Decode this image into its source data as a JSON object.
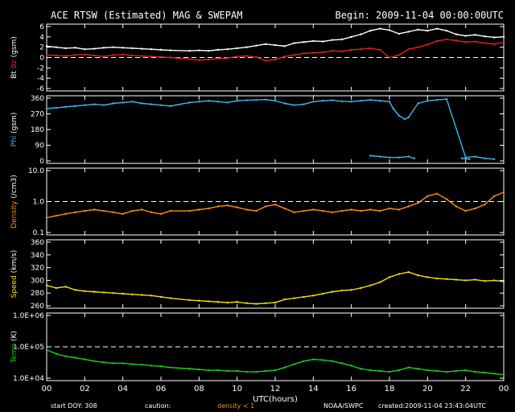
{
  "header": {
    "title": "ACE RTSW (Estimated) MAG & SWEPAM",
    "begin": "Begin: 2009-11-04 00:00:00UTC"
  },
  "footer": {
    "start_doy": "start DOY: 308",
    "caution": "caution:",
    "density_note": "density < 1",
    "credit": "NOAA/SWPC",
    "created": "created:2009-11-04 23:43:04UTC"
  },
  "colors": {
    "bt": "#ffffff",
    "bz": "#e02020",
    "phi": "#3fb8e8",
    "density": "#ff8c1a",
    "speed": "#f0e020",
    "temp": "#20d020",
    "caution": "#ff8c1a"
  },
  "chart_data": [
    {
      "type": "scatter",
      "id": "mag",
      "ylabel_parts": [
        {
          "text": "Bt",
          "color": "#ffffff"
        },
        {
          "text": "Bz",
          "color": "#e02020"
        },
        {
          "text": "(gsm)",
          "color": "#ffffff"
        }
      ],
      "ylim": [
        -6,
        6
      ],
      "yticks": [
        "-6",
        "-4",
        "-2",
        "0",
        "2",
        "4",
        "6"
      ],
      "reference_line": 0,
      "series": [
        {
          "name": "Bt",
          "color": "#ffffff",
          "x": [
            0,
            0.5,
            1,
            1.5,
            2,
            2.5,
            3,
            3.5,
            4,
            4.5,
            5,
            5.5,
            6,
            6.5,
            7.5,
            8,
            8.5,
            9,
            9.5,
            10,
            10.5,
            11,
            11.5,
            12,
            12.5,
            13,
            13.5,
            14,
            14.5,
            15,
            15.5,
            16,
            16.5,
            17,
            17.5,
            18,
            18.5,
            19,
            19.5,
            20,
            20.5,
            21,
            21.5,
            22,
            22.5,
            23,
            23.5,
            24
          ],
          "y": [
            2.2,
            2.0,
            1.8,
            1.9,
            1.6,
            1.7,
            1.9,
            2.0,
            1.9,
            1.8,
            1.7,
            1.6,
            1.5,
            1.4,
            1.3,
            1.4,
            1.3,
            1.5,
            1.6,
            1.8,
            2.0,
            2.3,
            2.6,
            2.4,
            2.2,
            2.8,
            3.0,
            3.2,
            3.1,
            3.4,
            3.5,
            4.0,
            4.5,
            5.2,
            5.6,
            5.3,
            4.6,
            5.0,
            5.4,
            5.2,
            5.6,
            5.2,
            4.5,
            4.2,
            4.4,
            4.1,
            3.9,
            4.0
          ]
        },
        {
          "name": "Bz",
          "color": "#e02020",
          "x": [
            0,
            0.5,
            1,
            1.5,
            2,
            2.5,
            3,
            3.5,
            4,
            4.5,
            5,
            5.5,
            6,
            6.5,
            7.5,
            8,
            8.5,
            9,
            9.5,
            10,
            10.5,
            11,
            11.5,
            12,
            12.5,
            13,
            13.5,
            14,
            14.5,
            15,
            15.5,
            16,
            16.5,
            17,
            17.5,
            18,
            18.5,
            19,
            19.5,
            20,
            20.5,
            21,
            21.5,
            22,
            22.5,
            23,
            23.5,
            24
          ],
          "y": [
            0.5,
            0.4,
            0.3,
            0.5,
            0.6,
            0.4,
            0.2,
            0.5,
            0.6,
            0.4,
            0.3,
            0.2,
            0.1,
            0.0,
            -0.3,
            -0.5,
            -0.4,
            -0.2,
            -0.1,
            0.2,
            0.3,
            0.1,
            -0.6,
            -0.4,
            0.2,
            0.5,
            0.8,
            0.9,
            1.0,
            1.3,
            1.2,
            1.5,
            1.6,
            1.8,
            1.5,
            0.0,
            0.5,
            1.6,
            2.0,
            2.5,
            3.2,
            3.5,
            3.3,
            3.0,
            3.1,
            2.8,
            2.6,
            3.0
          ]
        }
      ]
    },
    {
      "type": "scatter",
      "id": "phi",
      "ylabel_parts": [
        {
          "text": "Phi",
          "color": "#3fb8e8"
        },
        {
          "text": "(gsm)",
          "color": "#ffffff"
        }
      ],
      "ylim": [
        0,
        360
      ],
      "yticks": [
        "0",
        "90",
        "180",
        "270",
        "360"
      ],
      "series": [
        {
          "name": "Phi",
          "color": "#3fb8e8",
          "x": [
            0,
            0.5,
            1,
            1.5,
            2,
            2.5,
            3,
            3.5,
            4,
            4.5,
            5,
            5.5,
            6,
            6.5,
            7.5,
            8,
            8.5,
            9,
            9.5,
            10,
            10.5,
            11,
            11.5,
            12,
            12.5,
            13,
            13.5,
            14,
            14.5,
            15,
            15.5,
            16,
            16.5,
            17,
            17.5,
            18,
            18.2,
            18.5,
            18.8,
            19,
            19.5,
            20,
            20.5,
            21,
            22,
            22.5,
            23,
            23.5
          ],
          "y": [
            300,
            305,
            310,
            315,
            320,
            325,
            320,
            330,
            335,
            340,
            330,
            325,
            320,
            315,
            335,
            340,
            345,
            340,
            335,
            345,
            348,
            350,
            352,
            345,
            330,
            320,
            325,
            340,
            345,
            348,
            342,
            340,
            345,
            350,
            345,
            340,
            300,
            260,
            240,
            250,
            330,
            345,
            350,
            355,
            20,
            25,
            15,
            10
          ]
        },
        {
          "name": "Phi-low",
          "color": "#3fb8e8",
          "x": [
            17,
            17.5,
            18,
            18.5,
            19,
            19.3,
            21.8,
            22.2
          ],
          "y": [
            30,
            25,
            20,
            20,
            25,
            15,
            15,
            10
          ]
        }
      ]
    },
    {
      "type": "scatter",
      "id": "density",
      "ylabel_parts": [
        {
          "text": "Density",
          "color": "#ff8c1a"
        },
        {
          "text": "(/cm3)",
          "color": "#ffffff"
        }
      ],
      "ylim": [
        0.1,
        10.0
      ],
      "log_scale": true,
      "yticks": [
        "0.1",
        "1.0",
        "10.0"
      ],
      "reference_line": 1.0,
      "series": [
        {
          "name": "Density",
          "color": "#ff8c1a",
          "x": [
            0,
            0.5,
            1,
            1.5,
            2,
            2.5,
            3,
            3.5,
            4,
            4.5,
            5,
            5.5,
            6,
            6.5,
            7.5,
            8,
            8.5,
            9,
            9.5,
            10,
            10.5,
            11,
            11.5,
            12,
            12.5,
            13,
            13.5,
            14,
            14.5,
            15,
            15.5,
            16,
            16.5,
            17,
            17.5,
            18,
            18.5,
            19,
            19.5,
            20,
            20.5,
            21,
            21.5,
            22,
            22.5,
            23,
            23.5,
            24
          ],
          "y": [
            0.3,
            0.35,
            0.4,
            0.45,
            0.5,
            0.55,
            0.5,
            0.45,
            0.4,
            0.5,
            0.55,
            0.45,
            0.4,
            0.5,
            0.5,
            0.55,
            0.6,
            0.7,
            0.75,
            0.65,
            0.55,
            0.5,
            0.7,
            0.8,
            0.6,
            0.45,
            0.5,
            0.55,
            0.5,
            0.45,
            0.5,
            0.55,
            0.5,
            0.55,
            0.5,
            0.6,
            0.55,
            0.7,
            0.9,
            1.5,
            1.8,
            1.2,
            0.7,
            0.5,
            0.6,
            0.8,
            1.5,
            2.0
          ]
        }
      ]
    },
    {
      "type": "scatter",
      "id": "speed",
      "ylabel_parts": [
        {
          "text": "Speed",
          "color": "#f0e020"
        },
        {
          "text": "(km/s)",
          "color": "#ffffff"
        }
      ],
      "ylim": [
        260,
        360
      ],
      "yticks": [
        "260",
        "280",
        "300",
        "320",
        "340",
        "360"
      ],
      "series": [
        {
          "name": "Speed",
          "color": "#f0e020",
          "x": [
            0,
            0.5,
            1,
            1.5,
            2,
            2.5,
            3,
            3.5,
            4,
            4.5,
            5,
            5.5,
            6,
            6.5,
            7.5,
            8,
            8.5,
            9,
            9.5,
            10,
            10.5,
            11,
            11.5,
            12,
            12.5,
            13,
            13.5,
            14,
            14.5,
            15,
            15.5,
            16,
            16.5,
            17,
            17.5,
            18,
            18.5,
            19,
            19.5,
            20,
            20.5,
            21,
            21.5,
            22,
            22.5,
            23,
            23.5,
            24
          ],
          "y": [
            292,
            288,
            290,
            285,
            283,
            282,
            281,
            280,
            279,
            278,
            277,
            276,
            274,
            272,
            269,
            268,
            267,
            266,
            265,
            266,
            264,
            263,
            264,
            265,
            270,
            272,
            274,
            276,
            279,
            282,
            284,
            285,
            288,
            292,
            297,
            305,
            310,
            313,
            308,
            305,
            303,
            302,
            301,
            300,
            301,
            299,
            300,
            298
          ]
        }
      ]
    },
    {
      "type": "scatter",
      "id": "temp",
      "ylabel_parts": [
        {
          "text": "Temp",
          "color": "#20d020"
        },
        {
          "text": "(K)",
          "color": "#ffffff"
        }
      ],
      "ylim": [
        10000,
        1000000
      ],
      "log_scale": true,
      "yticks": [
        "1.0E+04",
        "1.0E+05",
        "1.0E+06"
      ],
      "reference_line": 100000,
      "series": [
        {
          "name": "Temp",
          "color": "#20d020",
          "x": [
            0,
            0.5,
            1,
            1.5,
            2,
            2.5,
            3,
            3.5,
            4,
            4.5,
            5,
            5.5,
            6,
            6.5,
            7.5,
            8,
            8.5,
            9,
            9.5,
            10,
            10.5,
            11,
            11.5,
            12,
            12.5,
            13,
            13.5,
            14,
            14.5,
            15,
            15.5,
            16,
            16.5,
            17,
            17.5,
            18,
            18.5,
            19,
            19.5,
            20,
            20.5,
            21,
            21.5,
            22,
            22.5,
            23,
            23.5,
            24
          ],
          "y": [
            80000,
            60000,
            50000,
            45000,
            40000,
            35000,
            32000,
            30000,
            30000,
            28000,
            27000,
            25000,
            24000,
            22000,
            20000,
            19000,
            18000,
            18000,
            17000,
            17000,
            16000,
            16000,
            17000,
            18000,
            22000,
            28000,
            35000,
            40000,
            38000,
            35000,
            30000,
            25000,
            20000,
            18000,
            17000,
            16000,
            18000,
            22000,
            20000,
            18000,
            17000,
            16000,
            17000,
            18000,
            16000,
            15000,
            14000,
            13000
          ]
        }
      ]
    }
  ],
  "xaxis": {
    "label": "UTC(hours)",
    "ticks": [
      "00",
      "02",
      "04",
      "06",
      "08",
      "10",
      "12",
      "14",
      "16",
      "18",
      "20",
      "22",
      "00"
    ],
    "xlim": [
      0,
      24
    ]
  }
}
